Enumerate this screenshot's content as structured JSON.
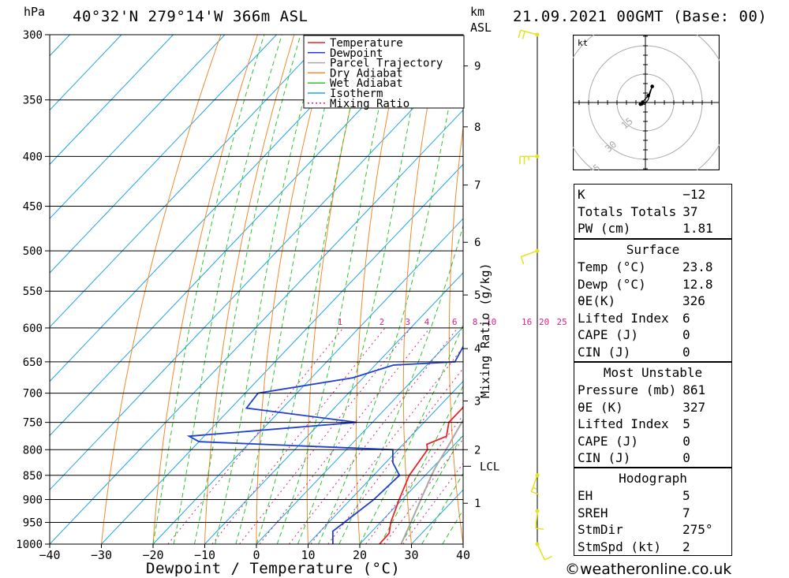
{
  "header": {
    "location": "40°32'N 279°14'W 366m ASL",
    "datetime": "21.09.2021 00GMT (Base: 00)",
    "hpa_label": "hPa",
    "km_label": "km",
    "asl_label": "ASL",
    "x_title": "Dewpoint / Temperature (°C)",
    "mixing_title": "Mixing Ratio (g/kg)",
    "footer": "©weatheronline.co.uk",
    "lcl_label": "LCL"
  },
  "colors": {
    "temperature": "#e8262a",
    "dewpoint": "#1f3fd6",
    "parcel": "#a8a8a8",
    "dry_adiabat": "#f08a2e",
    "wet_adiabat": "#2fc42f",
    "isotherm": "#1fa3ea",
    "mixing_ratio": "#d4258a",
    "wind": "#e3e31e"
  },
  "chart_data": {
    "type": "line",
    "title": "",
    "xlabel": "Dewpoint / Temperature (°C)",
    "ylabel": "hPa",
    "xlim": [
      -40,
      40
    ],
    "ylim": [
      1000,
      300
    ],
    "x_ticks": [
      "−40",
      "−30",
      "−20",
      "−10",
      "0",
      "10",
      "20",
      "30",
      "40"
    ],
    "pressure_levels": [
      300,
      350,
      400,
      450,
      500,
      550,
      600,
      650,
      700,
      750,
      800,
      850,
      900,
      950,
      1000
    ],
    "km_ticks": [
      {
        "km": "1",
        "p": 908
      },
      {
        "km": "2",
        "p": 800
      },
      {
        "km": "3",
        "p": 713
      },
      {
        "km": "4",
        "p": 630
      },
      {
        "km": "5",
        "p": 555
      },
      {
        "km": "6",
        "p": 490
      },
      {
        "km": "7",
        "p": 428
      },
      {
        "km": "8",
        "p": 373
      },
      {
        "km": "9",
        "p": 323
      }
    ],
    "lcl_pressure": 832,
    "legend": [
      "Temperature",
      "Dewpoint",
      "Parcel Trajectory",
      "Dry Adiabat",
      "Wet Adiabat",
      "Isotherm",
      "Mixing Ratio"
    ],
    "legend_position": "top-right",
    "mixing_ratio_labels": [
      "1",
      "2",
      "3",
      "4",
      "6",
      "8",
      "10",
      "16",
      "20",
      "25"
    ],
    "series": [
      {
        "name": "Temperature",
        "points": [
          [
            300,
            -21.2
          ],
          [
            350,
            -9.8
          ],
          [
            375,
            -6.8
          ],
          [
            400,
            -3.8
          ],
          [
            430,
            -1.2
          ],
          [
            450,
            -0.6
          ],
          [
            500,
            4.5
          ],
          [
            550,
            7.8
          ],
          [
            600,
            10.5
          ],
          [
            625,
            10.6
          ],
          [
            650,
            11.5
          ],
          [
            675,
            12.6
          ],
          [
            700,
            13.7
          ],
          [
            725,
            14.8
          ],
          [
            750,
            14.8
          ],
          [
            775,
            16.9
          ],
          [
            790,
            14.6
          ],
          [
            800,
            15.7
          ],
          [
            850,
            16.9
          ],
          [
            900,
            19.4
          ],
          [
            950,
            22.0
          ],
          [
            975,
            23.7
          ],
          [
            1000,
            23.8
          ]
        ]
      },
      {
        "name": "Dewpoint",
        "points": [
          [
            300,
            -27.4
          ],
          [
            320,
            -27.2
          ],
          [
            350,
            -28.5
          ],
          [
            365,
            -28.6
          ],
          [
            385,
            -11.2
          ],
          [
            400,
            -11.8
          ],
          [
            425,
            -11.4
          ],
          [
            450,
            -2.7
          ],
          [
            475,
            -3.8
          ],
          [
            500,
            -1.0
          ],
          [
            550,
            3.7
          ],
          [
            575,
            2.0
          ],
          [
            600,
            1.0
          ],
          [
            625,
            3.5
          ],
          [
            650,
            4.8
          ],
          [
            655,
            -6.5
          ],
          [
            675,
            -12.0
          ],
          [
            700,
            -27.5
          ],
          [
            725,
            -27.0
          ],
          [
            750,
            -3.0
          ],
          [
            775,
            -32.9
          ],
          [
            785,
            -30.0
          ],
          [
            800,
            9.0
          ],
          [
            825,
            11.4
          ],
          [
            850,
            15.0
          ],
          [
            900,
            14.5
          ],
          [
            950,
            13.0
          ],
          [
            970,
            12.4
          ],
          [
            1000,
            14.8
          ]
        ]
      },
      {
        "name": "Parcel Trajectory",
        "points": [
          [
            300,
            -23.8
          ],
          [
            350,
            -16.0
          ],
          [
            400,
            -9.0
          ],
          [
            450,
            -3.2
          ],
          [
            500,
            1.8
          ],
          [
            550,
            6.0
          ],
          [
            600,
            9.4
          ],
          [
            650,
            12.4
          ],
          [
            700,
            15.0
          ],
          [
            750,
            17.3
          ],
          [
            800,
            19.3
          ],
          [
            832,
            20.4
          ],
          [
            850,
            21.2
          ],
          [
            900,
            23.6
          ],
          [
            950,
            25.9
          ],
          [
            1000,
            28.0
          ]
        ]
      }
    ]
  },
  "hodograph": {
    "unit_label": "kt",
    "ring_labels": [
      "15",
      "30",
      "45"
    ],
    "trace": [
      [
        0,
        0
      ],
      [
        -1.8,
        -0.6
      ],
      [
        -1.4,
        0.2
      ],
      [
        -2.6,
        -0.9
      ],
      [
        1.5,
        3.6
      ],
      [
        3.6,
        8.5
      ],
      [
        1.4,
        1.4
      ],
      [
        -0.6,
        -1.2
      ],
      [
        0,
        0
      ]
    ]
  },
  "wind_barbs": [
    {
      "p": 300,
      "dir": 285,
      "speed": 20
    },
    {
      "p": 400,
      "dir": 270,
      "speed": 15
    },
    {
      "p": 500,
      "dir": 250,
      "speed": 10
    },
    {
      "p": 850,
      "dir": 200,
      "speed": 5
    },
    {
      "p": 925,
      "dir": 185,
      "speed": 10
    },
    {
      "p": 1000,
      "dir": 155,
      "speed": 10
    }
  ],
  "indices": {
    "general": [
      {
        "label": "K",
        "value": "−12"
      },
      {
        "label": "Totals Totals",
        "value": "37"
      },
      {
        "label": "PW (cm)",
        "value": "1.81"
      }
    ],
    "surface_title": "Surface",
    "surface": [
      {
        "label": "Temp (°C)",
        "value": "23.8"
      },
      {
        "label": "Dewp (°C)",
        "value": "12.8"
      },
      {
        "label": "θE(K)",
        "value": "326"
      },
      {
        "label": "Lifted Index",
        "value": "6"
      },
      {
        "label": "CAPE (J)",
        "value": "0"
      },
      {
        "label": "CIN (J)",
        "value": "0"
      }
    ],
    "unstable_title": "Most Unstable",
    "unstable": [
      {
        "label": "Pressure (mb)",
        "value": "861"
      },
      {
        "label": "θE (K)",
        "value": "327"
      },
      {
        "label": "Lifted Index",
        "value": "5"
      },
      {
        "label": "CAPE (J)",
        "value": "0"
      },
      {
        "label": "CIN (J)",
        "value": "0"
      }
    ],
    "hodo_title": "Hodograph",
    "hodo": [
      {
        "label": "EH",
        "value": "5"
      },
      {
        "label": "SREH",
        "value": "7"
      },
      {
        "label": "StmDir",
        "value": "275°"
      },
      {
        "label": "StmSpd (kt)",
        "value": "2"
      }
    ]
  }
}
